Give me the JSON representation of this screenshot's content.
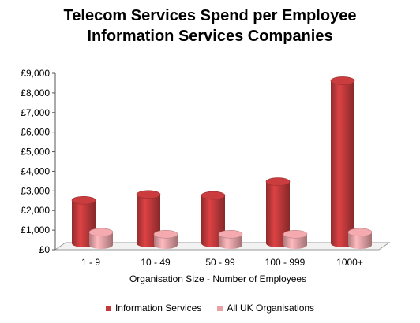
{
  "chart_data": {
    "type": "bar",
    "title": "Telecom Services Spend per Employee",
    "subtitle": "Information Services Companies",
    "xlabel": "Organisation Size - Number of Employees",
    "ylabel": "",
    "categories": [
      "1 - 9",
      "10 - 49",
      "50 - 99",
      "100 - 999",
      "1000+"
    ],
    "y_tick_labels": [
      "£0",
      "£1,000",
      "£2,000",
      "£3,000",
      "£4,000",
      "£5,000",
      "£6,000",
      "£7,000",
      "£8,000",
      "£9,000"
    ],
    "ylim": [
      0,
      9000
    ],
    "grid": false,
    "legend_position": "bottom",
    "series": [
      {
        "name": "Information Services",
        "values": [
          2200,
          2500,
          2450,
          3150,
          8300
        ],
        "color": "#c0393b"
      },
      {
        "name": "All UK Organisations",
        "values": [
          650,
          550,
          550,
          550,
          650
        ],
        "color": "#e8a2a6"
      }
    ]
  }
}
